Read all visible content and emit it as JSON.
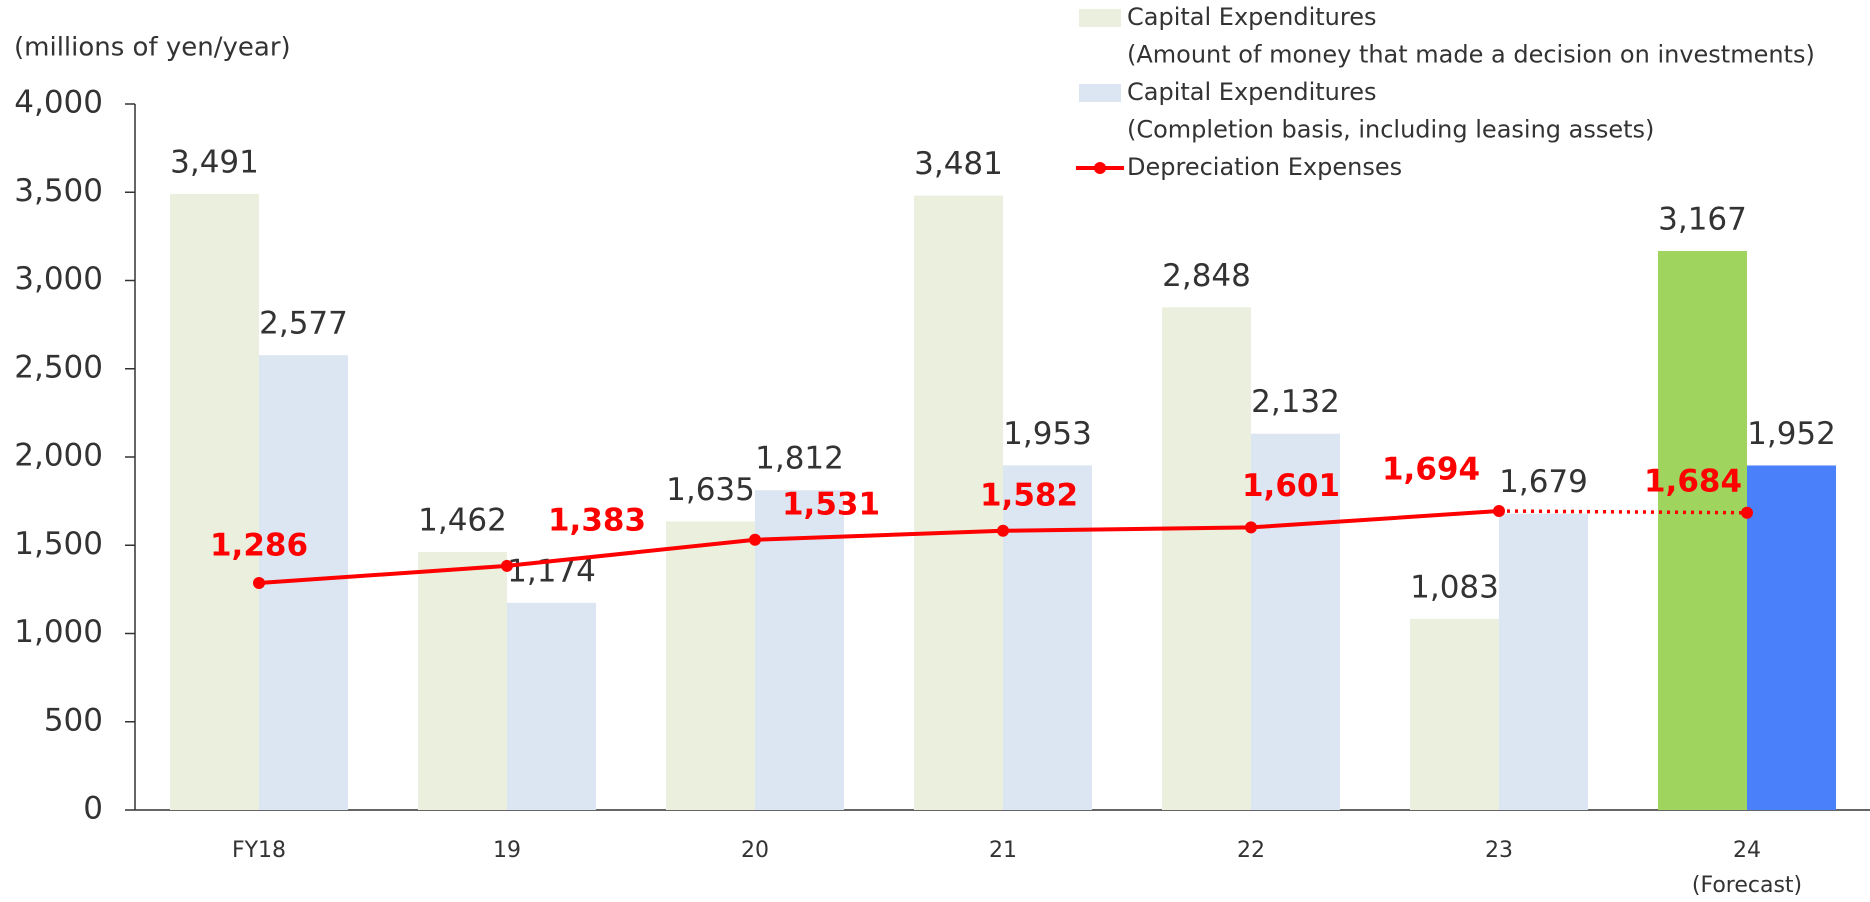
{
  "chart_data": {
    "type": "bar",
    "y_axis_label": "(millions of yen/year)",
    "categories": [
      "FY18",
      "19",
      "20",
      "21",
      "22",
      "23",
      "24"
    ],
    "category_note": "(Forecast)",
    "series": [
      {
        "name": "Capital Expenditures",
        "note": "(Amount of money that made a decision on investments)",
        "color": "#ebefdd",
        "highlight_color": "#9fd45f",
        "values": [
          3491,
          1462,
          1635,
          3481,
          2848,
          1083,
          3167
        ],
        "value_labels": [
          "3,491",
          "1,462",
          "1,635",
          "3,481",
          "2,848",
          "1,083",
          "3,167"
        ]
      },
      {
        "name": "Capital Expenditures",
        "note": "(Completion basis, including leasing assets)",
        "color": "#dce6f2",
        "highlight_color": "#4a80fa",
        "values": [
          2577,
          1174,
          1812,
          1953,
          2132,
          1679,
          1952
        ],
        "value_labels": [
          "2,577",
          "1,174",
          "1,812",
          "1,953",
          "2,132",
          "1,679",
          "1,952"
        ]
      },
      {
        "name": "Depreciation Expenses",
        "type": "line",
        "color": "#ff0000",
        "dotted_last_segment": true,
        "values": [
          1286,
          1383,
          1531,
          1582,
          1601,
          1694,
          1684
        ],
        "value_labels": [
          "1,286",
          "1,383",
          "1,531",
          "1,582",
          "1,601",
          "1,694",
          "1,684"
        ]
      }
    ],
    "highlight_last": true,
    "ylim": [
      0,
      4000
    ],
    "yticks": [
      0,
      {
        "value": 500,
        "label": "500"
      },
      {
        "value": 1000,
        "label": "1,000"
      },
      {
        "value": 1500,
        "label": "1,500"
      },
      {
        "value": 2000,
        "label": "2,000"
      },
      {
        "value": 2500,
        "label": "2,500"
      },
      {
        "value": 3000,
        "label": "3,000"
      },
      {
        "value": 3500,
        "label": "3,500"
      },
      {
        "value": 4000,
        "label": "4,000"
      }
    ]
  }
}
